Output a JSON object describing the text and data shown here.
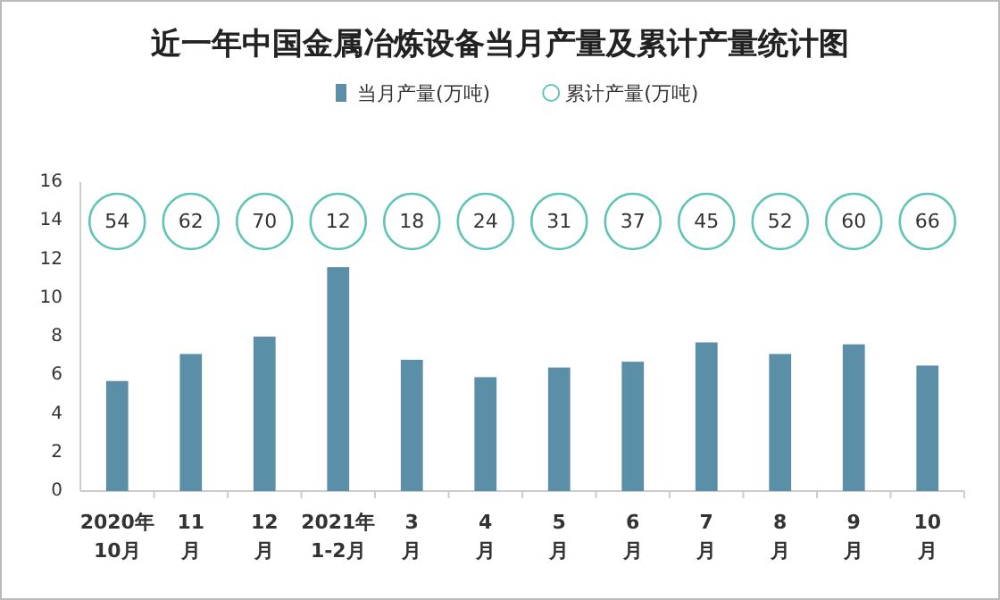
{
  "chart_data": [
    {
      "type": "bar",
      "title": "近一年中国金属冶炼设备当月产量及累计产量统计图",
      "categories": [
        "2020年\n10月",
        "11\n月",
        "12\n月",
        "2021年\n1-2月",
        "3\n月",
        "4\n月",
        "5\n月",
        "6\n月",
        "7\n月",
        "8\n月",
        "9\n月",
        "10\n月"
      ],
      "series": [
        {
          "name": "当月产量(万吨)",
          "type": "bar",
          "color": "#5b8fa8",
          "values": [
            5.7,
            7.1,
            8.0,
            11.6,
            6.8,
            5.9,
            6.4,
            6.7,
            7.7,
            7.1,
            7.6,
            6.5
          ]
        }
      ],
      "ylim": [
        0,
        16
      ],
      "yticks": [
        0,
        2,
        4,
        6,
        8,
        10,
        12,
        14,
        16
      ],
      "legend": "top"
    },
    {
      "type": "other",
      "series": [
        {
          "name": "累计产量(万吨)",
          "color": "#5ec4b6",
          "values": [
            54,
            62,
            70,
            12,
            18,
            24,
            31,
            37,
            45,
            52,
            60,
            66
          ]
        }
      ],
      "data_labels": true,
      "legend": "top"
    }
  ]
}
